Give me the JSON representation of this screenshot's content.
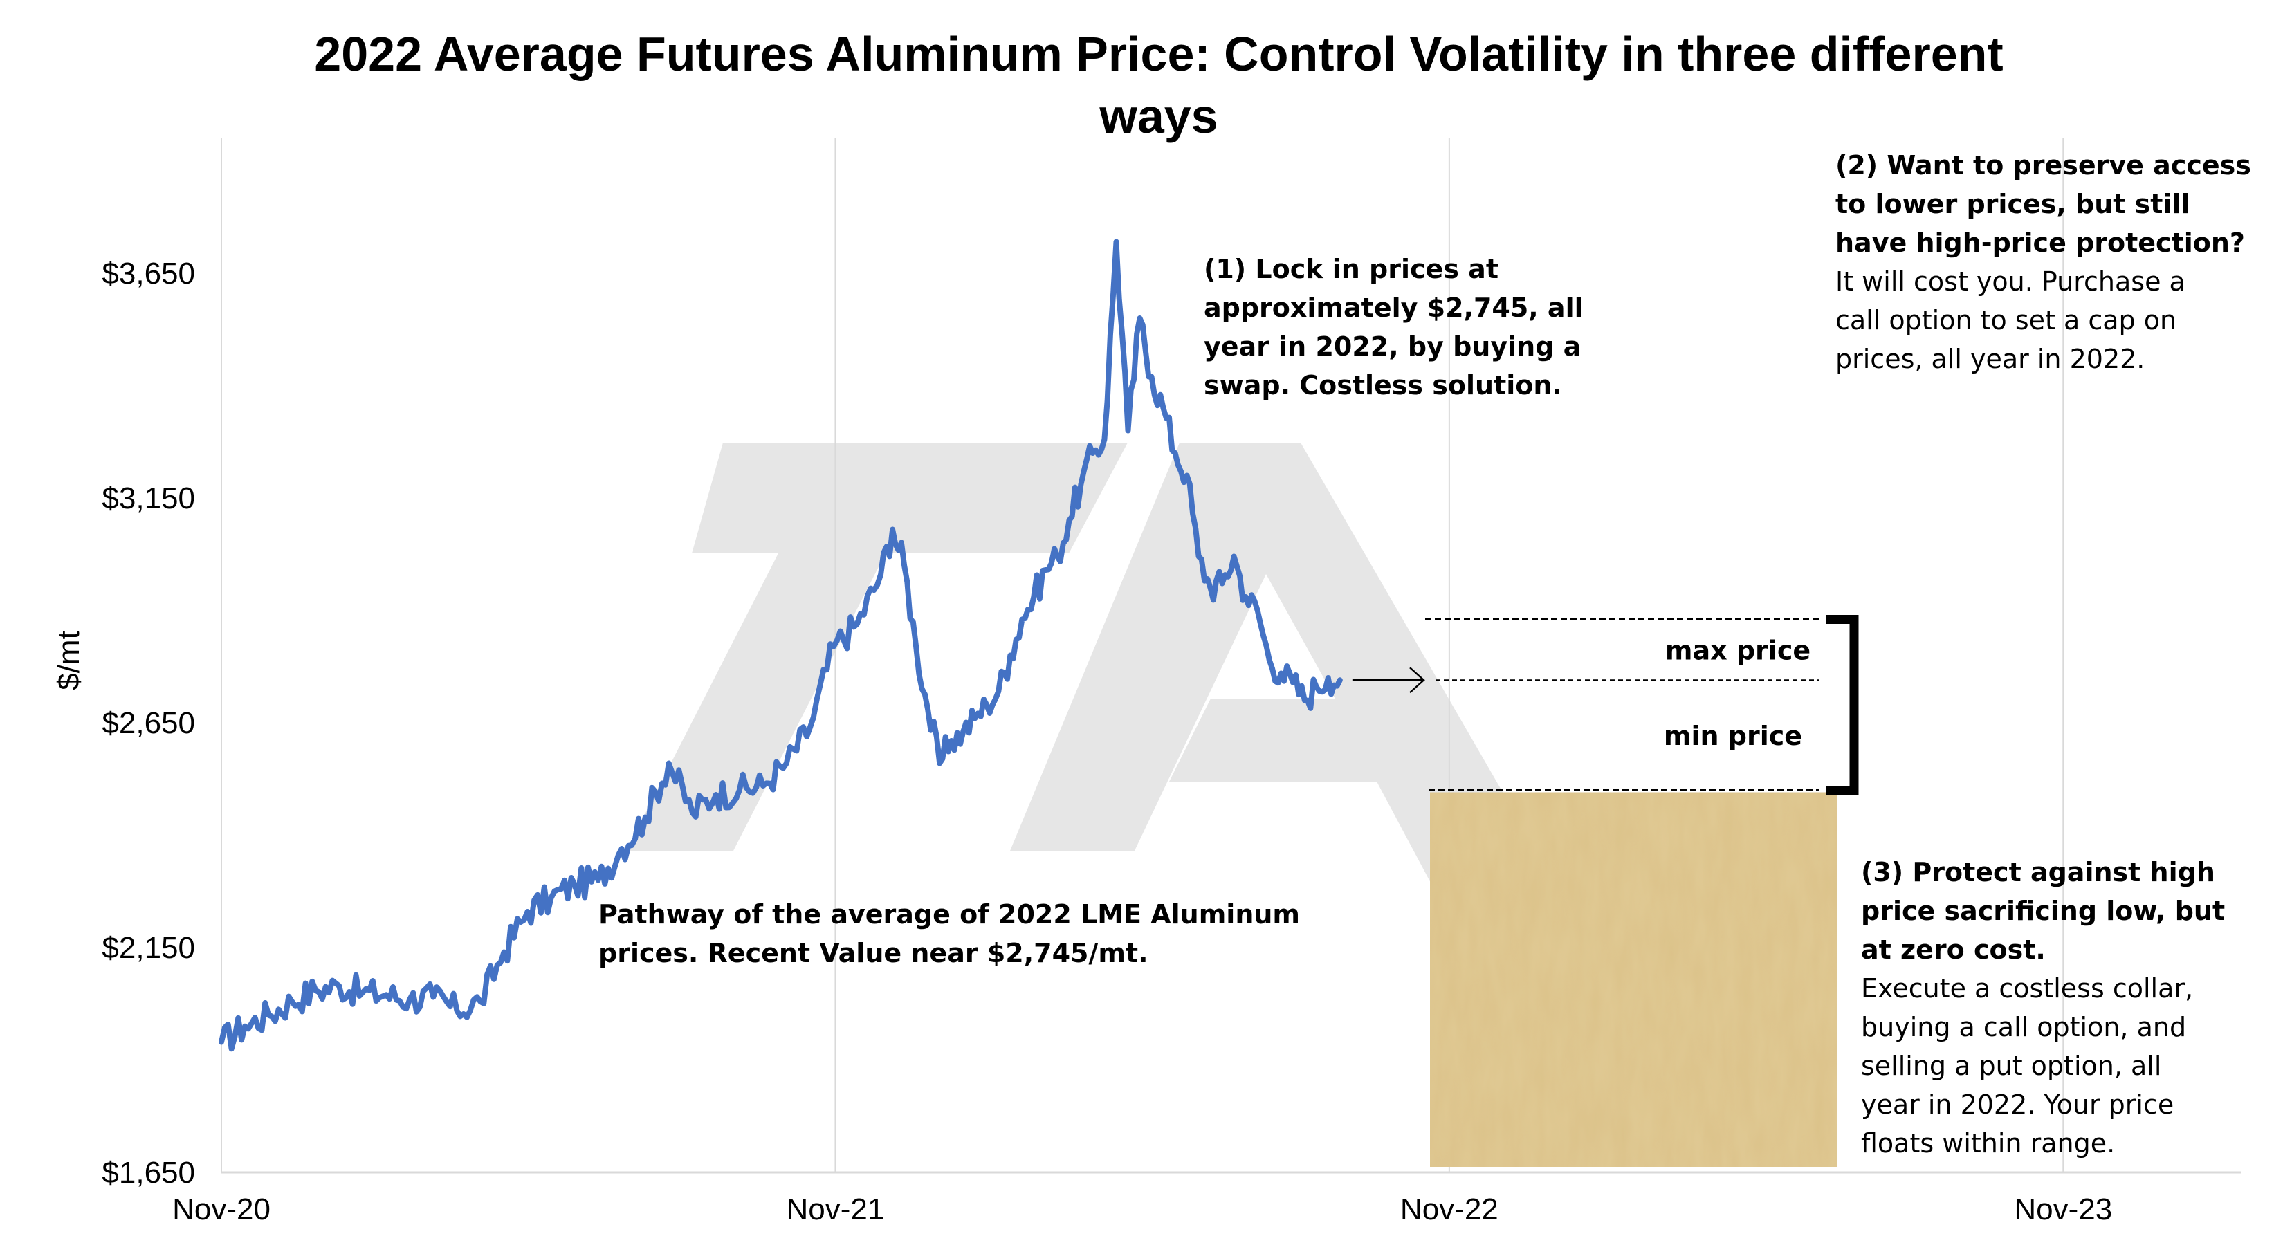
{
  "chart_data": {
    "type": "line",
    "title": "2022 Average Futures Aluminum Price: Control Volatility in three different ways",
    "title_lines": [
      "2022 Average Futures Aluminum Price: Control Volatility in three different",
      "ways"
    ],
    "xlabel": "",
    "ylabel": "$/mt",
    "x_ticks": [
      "Nov-20",
      "Nov-21",
      "Nov-22",
      "Nov-23"
    ],
    "y_ticks": [
      "$1,650",
      "$2,150",
      "$2,650",
      "$3,150",
      "$3,650"
    ],
    "y_tick_values": [
      1650,
      2150,
      2650,
      3150,
      3650
    ],
    "ylim": [
      1650,
      3950
    ],
    "xlim": [
      "2020-11-01",
      "2024-02-15"
    ],
    "grid": "vertical",
    "series": [
      {
        "color": "#4472C4",
        "points": [
          [
            "2020-11-01",
            1940
          ],
          [
            "2020-11-15",
            1975
          ],
          [
            "2020-11-29",
            2000
          ],
          [
            "2020-12-13",
            2030
          ],
          [
            "2020-12-27",
            2055
          ],
          [
            "2021-01-10",
            2065
          ],
          [
            "2021-01-24",
            2050
          ],
          [
            "2021-02-07",
            2045
          ],
          [
            "2021-02-21",
            2035
          ],
          [
            "2021-03-07",
            2040
          ],
          [
            "2021-03-21",
            2010
          ],
          [
            "2021-04-04",
            2030
          ],
          [
            "2021-04-18",
            2140
          ],
          [
            "2021-05-02",
            2230
          ],
          [
            "2021-05-16",
            2260
          ],
          [
            "2021-05-30",
            2290
          ],
          [
            "2021-06-13",
            2300
          ],
          [
            "2021-06-27",
            2370
          ],
          [
            "2021-07-11",
            2440
          ],
          [
            "2021-07-25",
            2560
          ],
          [
            "2021-08-08",
            2450
          ],
          [
            "2021-08-22",
            2490
          ],
          [
            "2021-09-05",
            2500
          ],
          [
            "2021-09-19",
            2510
          ],
          [
            "2021-10-03",
            2560
          ],
          [
            "2021-10-17",
            2640
          ],
          [
            "2021-10-31",
            2820
          ],
          [
            "2021-11-14",
            2870
          ],
          [
            "2021-11-28",
            2980
          ],
          [
            "2021-12-05",
            3080
          ],
          [
            "2021-12-12",
            3000
          ],
          [
            "2021-12-19",
            2820
          ],
          [
            "2021-12-26",
            2680
          ],
          [
            "2022-01-02",
            2560
          ],
          [
            "2022-01-09",
            2610
          ],
          [
            "2022-01-16",
            2630
          ],
          [
            "2022-01-23",
            2660
          ],
          [
            "2022-01-30",
            2690
          ],
          [
            "2022-02-06",
            2720
          ],
          [
            "2022-02-13",
            2800
          ],
          [
            "2022-02-20",
            2880
          ],
          [
            "2022-02-27",
            2930
          ],
          [
            "2022-03-06",
            2990
          ],
          [
            "2022-03-13",
            3020
          ],
          [
            "2022-03-20",
            3100
          ],
          [
            "2022-03-27",
            3180
          ],
          [
            "2022-04-03",
            3250
          ],
          [
            "2022-04-10",
            3280
          ],
          [
            "2022-04-17",
            3720
          ],
          [
            "2022-04-24",
            3300
          ],
          [
            "2022-05-01",
            3550
          ],
          [
            "2022-05-08",
            3420
          ],
          [
            "2022-05-15",
            3350
          ],
          [
            "2022-05-22",
            3250
          ],
          [
            "2022-05-29",
            3200
          ],
          [
            "2022-06-05",
            3020
          ],
          [
            "2022-06-12",
            2950
          ],
          [
            "2022-06-19",
            2960
          ],
          [
            "2022-06-26",
            3020
          ],
          [
            "2022-07-03",
            2930
          ],
          [
            "2022-07-10",
            2900
          ],
          [
            "2022-07-17",
            2790
          ],
          [
            "2022-07-24",
            2760
          ],
          [
            "2022-07-31",
            2740
          ],
          [
            "2022-08-07",
            2700
          ],
          [
            "2022-08-14",
            2730
          ],
          [
            "2022-08-21",
            2750
          ],
          [
            "2022-08-28",
            2745
          ]
        ]
      }
    ],
    "annotations": [
      {
        "name": "swap",
        "lines": [
          {
            "text": "(1) Lock in prices at",
            "bold": true
          },
          {
            "text": "approximately $2,745, all",
            "bold": true
          },
          {
            "text": "year in 2022, by buying a",
            "bold": true
          },
          {
            "text": "swap. Costless solution.",
            "bold": true
          }
        ]
      },
      {
        "name": "call-option",
        "lines": [
          {
            "text": "(2) Want to preserve access",
            "bold": true
          },
          {
            "text": "to lower prices, but still",
            "bold": true
          },
          {
            "text": "have high-price protection?",
            "bold": true
          },
          {
            "text": "It will cost you. Purchase a",
            "bold": false
          },
          {
            "text": "call option to set a cap on",
            "bold": false
          },
          {
            "text": "prices, all year in 2022.",
            "bold": false
          }
        ]
      },
      {
        "name": "collar",
        "lines": [
          {
            "text": "(3) Protect against high",
            "bold": true
          },
          {
            "text": "price sacrificing low, but",
            "bold": true
          },
          {
            "text": "at zero cost.",
            "bold": true
          },
          {
            "text": "Execute a costless collar,",
            "bold": false
          },
          {
            "text": "buying a call option, and",
            "bold": false
          },
          {
            "text": "selling a put option, all",
            "bold": false
          },
          {
            "text": "year in 2022.  Your price",
            "bold": false
          },
          {
            "text": "floats within range.",
            "bold": false
          }
        ]
      },
      {
        "name": "pathway",
        "lines": [
          {
            "text": "Pathway of the average of 2022 LME Aluminum",
            "bold": true
          },
          {
            "text": "prices.  Recent Value near $2,745/mt.",
            "bold": true
          }
        ]
      }
    ],
    "band": {
      "max_label": "max price",
      "min_label": "min price",
      "max_value": 2880,
      "mid_value": 2745,
      "min_value": 2500
    },
    "colors": {
      "series": "#4472C4",
      "grid": "#d9d9d9",
      "floor_fill": "#dcc28a",
      "watermark": "#e6e6e6"
    }
  }
}
